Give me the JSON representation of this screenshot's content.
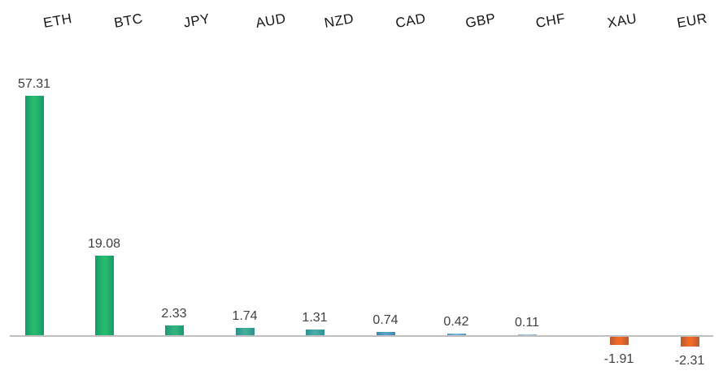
{
  "chart_data": {
    "type": "bar",
    "title": "",
    "xlabel": "",
    "ylabel": "",
    "categories": [
      "ETH",
      "BTC",
      "JPY",
      "AUD",
      "NZD",
      "CAD",
      "GBP",
      "CHF",
      "XAU",
      "EUR"
    ],
    "values": [
      57.31,
      19.08,
      2.33,
      1.74,
      1.31,
      0.74,
      0.42,
      0.11,
      -1.91,
      -2.31
    ],
    "value_labels": [
      "57.31",
      "19.08",
      "2.33",
      "1.74",
      "1.31",
      "0.74",
      "0.42",
      "0.11",
      "-1.91",
      "-2.31"
    ],
    "bar_colors": [
      "#0fb25e",
      "#0fb25e",
      "#1cab70",
      "#2ea48d",
      "#31a49a",
      "#4496be",
      "#68abd3",
      "#9cc3e5",
      "#f1590f",
      "#f1590f"
    ],
    "ylim": [
      -2.31,
      57.31
    ],
    "grid": false,
    "legend": "none",
    "category_labels_position": "top",
    "category_label_rotation_deg": -10,
    "data_labels": "outside-end"
  },
  "colors": {
    "background": "#ffffff",
    "axis_line": "#bfbfbf",
    "category_label": "#161616",
    "value_label": "#3f3f3f",
    "positive_green": "#0fb25e",
    "teal": "#31a49a",
    "blue": "#4496be",
    "negative_orange": "#f1590f"
  }
}
